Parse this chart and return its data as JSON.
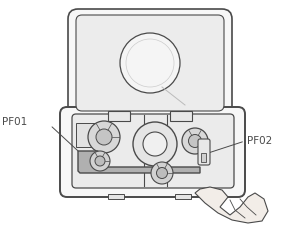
{
  "bg_color": "#ffffff",
  "line_color": "#4a4a4a",
  "light_fill": "#f7f7f7",
  "inner_fill": "#f0f0f0",
  "gray_fill": "#b0b0b0",
  "mid_gray": "#d8d8d8",
  "label_pf01": "PF01",
  "label_pf02": "PF02",
  "label_fontsize": 7.5,
  "figsize": [
    3.0,
    2.45
  ],
  "dpi": 100
}
